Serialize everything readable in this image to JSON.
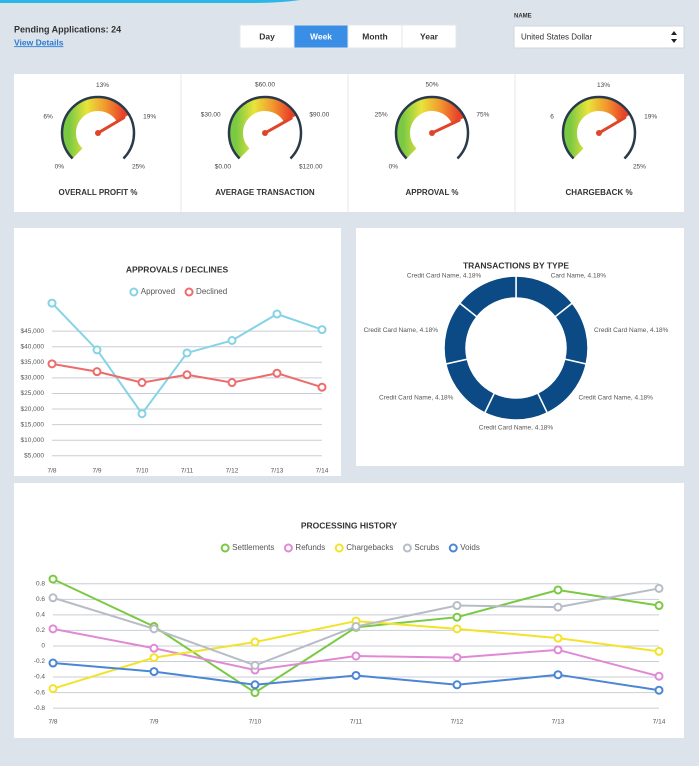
{
  "header": {
    "pending": "Pending Applications: 24",
    "link": "View Details",
    "periods": [
      "Day",
      "Week",
      "Month",
      "Year"
    ],
    "active_period": 1,
    "name_label": "NAME",
    "currency": "United States Dollar"
  },
  "chart_data": [
    {
      "type": "gauge",
      "title": "OVERALL PROFIT %",
      "ylim": [
        0,
        25
      ],
      "yticks": [
        {
          "value": 0,
          "label": "0%"
        },
        {
          "value": 6,
          "label": "6%"
        },
        {
          "value": 13,
          "label": "13%"
        },
        {
          "value": 19,
          "label": "19%"
        },
        {
          "value": 25,
          "label": "25%"
        }
      ],
      "value": 18,
      "colors": [
        "#7ac943",
        "#e9e43a",
        "#f29a2e",
        "#e8432a"
      ],
      "needle_color": "#e0452a"
    },
    {
      "type": "gauge",
      "title": "AVERAGE TRANSACTION",
      "ylim": [
        0,
        120
      ],
      "yticks": [
        {
          "value": 0,
          "label": "$0.00"
        },
        {
          "value": 30,
          "label": "$30.00"
        },
        {
          "value": 60,
          "label": "$60.00"
        },
        {
          "value": 90,
          "label": "$90.00"
        },
        {
          "value": 120,
          "label": "$120.00"
        }
      ],
      "value": 87,
      "colors": [
        "#7ac943",
        "#e9e43a",
        "#f29a2e",
        "#e8432a"
      ],
      "needle_color": "#e0452a"
    },
    {
      "type": "gauge",
      "title": "APPROVAL %",
      "ylim": [
        0,
        100
      ],
      "yticks": [
        {
          "value": 0,
          "label": "0%"
        },
        {
          "value": 25,
          "label": "25%"
        },
        {
          "value": 50,
          "label": "50%"
        },
        {
          "value": 75,
          "label": "75%"
        }
      ],
      "value": 74,
      "colors": [
        "#7ac943",
        "#e9e43a",
        "#f29a2e",
        "#e8432a"
      ],
      "needle_color": "#e0452a"
    },
    {
      "type": "gauge",
      "title": "CHARGEBACK %",
      "ylim": [
        0,
        25
      ],
      "yticks": [
        6,
        {
          "value": 13,
          "label": "13%"
        },
        {
          "value": 19,
          "label": "19%"
        },
        {
          "value": 25,
          "label": "25%"
        }
      ],
      "value": 18,
      "colors": [
        "#7ac943",
        "#e9e43a",
        "#f29a2e",
        "#e8432a"
      ],
      "needle_color": "#e0452a"
    },
    {
      "type": "line",
      "title": "APPROVALS / DECLINES",
      "categories": [
        "7/8",
        "7/9",
        "7/10",
        "7/11",
        "7/12",
        "7/13",
        "7/14"
      ],
      "series": [
        {
          "name": "Approved",
          "color": "#86d3e6",
          "values": [
            54000,
            39000,
            18500,
            38000,
            42000,
            50500,
            45500
          ]
        },
        {
          "name": "Declined",
          "color": "#ee6b6b",
          "values": [
            34500,
            32000,
            28500,
            31000,
            28500,
            31500,
            27000
          ]
        }
      ],
      "ylim": [
        3000,
        55000
      ],
      "yticks": [
        {
          "value": 5000,
          "label": "$5,000"
        },
        {
          "value": 10000,
          "label": "$10,000"
        },
        {
          "value": 15000,
          "label": "$15,000"
        },
        {
          "value": 20000,
          "label": "$20,000"
        },
        {
          "value": 25000,
          "label": "$25,000"
        },
        {
          "value": 30000,
          "label": "$30,000"
        },
        {
          "value": 35000,
          "label": "$35,000"
        },
        {
          "value": 40000,
          "label": "$40,000"
        },
        {
          "value": 45000,
          "label": "$45,000"
        }
      ],
      "grid": true
    },
    {
      "type": "pie",
      "title": "TRANSACTIONS BY TYPE",
      "donut": true,
      "color": "#0b4a84",
      "values": [
        4.18,
        4.18,
        4.18,
        4.18,
        4.18,
        4.18,
        4.18
      ],
      "value_labels": [
        "Card Name, 4.18%",
        "Credit Card Name, 4.18%",
        "Credit Card Name, 4.18%",
        "Credit Card Name, 4.18%",
        "Credit Card Name, 4.18%",
        "Credit Card Name, 4.18%",
        "Credit Card Name, 4.18%"
      ]
    },
    {
      "type": "line",
      "title": "PROCESSING HISTORY",
      "categories": [
        "7/8",
        "7/9",
        "7/10",
        "7/11",
        "7/12",
        "7/13",
        "7/14"
      ],
      "series": [
        {
          "name": "Settlements",
          "color": "#7ac943",
          "values": [
            0.86,
            0.25,
            -0.6,
            0.24,
            0.37,
            0.72,
            0.52
          ]
        },
        {
          "name": "Refunds",
          "color": "#e08ad6",
          "values": [
            0.22,
            -0.03,
            -0.31,
            -0.13,
            -0.15,
            -0.05,
            -0.39
          ]
        },
        {
          "name": "Chargebacks",
          "color": "#f2e32a",
          "values": [
            -0.55,
            -0.15,
            0.05,
            0.32,
            0.22,
            0.1,
            -0.07
          ]
        },
        {
          "name": "Scrubs",
          "color": "#b8bcc6",
          "values": [
            0.62,
            0.22,
            -0.25,
            0.25,
            0.52,
            0.5,
            0.74
          ]
        },
        {
          "name": "Voids",
          "color": "#4a86d4",
          "values": [
            -0.22,
            -0.33,
            -0.5,
            -0.38,
            -0.5,
            -0.37,
            -0.57
          ]
        }
      ],
      "ylim": [
        -0.85,
        0.9
      ],
      "yticks": [
        -0.8,
        -0.6,
        -0.4,
        -0.2,
        0,
        0.2,
        0.4,
        0.6,
        0.8
      ],
      "grid": true
    }
  ]
}
